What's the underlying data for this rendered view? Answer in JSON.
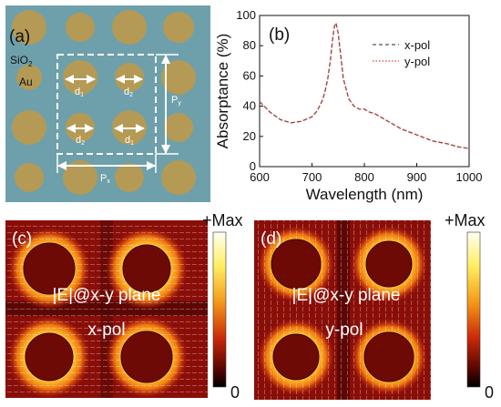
{
  "panel_a": {
    "label": "(a)",
    "substrate_label": "SiO",
    "substrate_sub": "2",
    "metal_label": "Au",
    "d1": "d",
    "d1_sub": "1",
    "d2": "d",
    "d2_sub": "2",
    "px": "P",
    "px_sub": "x",
    "py": "P",
    "py_sub": "y",
    "colors": {
      "background": "#6ea0ab",
      "disk": "#b49a54"
    }
  },
  "chart_data": {
    "type": "line",
    "label": "(b)",
    "xlabel": "Wavelength (nm)",
    "ylabel": "Absorptance (%)",
    "xlim": [
      600,
      1000
    ],
    "ylim": [
      0,
      100
    ],
    "xticks": [
      "600",
      "700",
      "800",
      "900",
      "1000"
    ],
    "yticks": [
      "0",
      "20",
      "40",
      "60",
      "80",
      "100"
    ],
    "series": [
      {
        "name": "x-pol",
        "style": "dashed",
        "color": "#555555",
        "x": [
          600,
          620,
          640,
          660,
          680,
          700,
          710,
          720,
          725,
          730,
          735,
          740,
          743,
          746,
          750,
          755,
          760,
          770,
          780,
          790,
          800,
          810,
          820,
          830,
          850,
          870,
          900,
          930,
          960,
          980,
          1000
        ],
        "y": [
          43,
          36,
          31,
          29,
          30,
          33,
          37,
          44,
          50,
          58,
          70,
          86,
          93,
          95,
          88,
          73,
          58,
          45,
          40,
          38,
          38,
          36,
          35,
          33,
          29,
          25,
          21,
          17,
          15,
          13,
          12
        ]
      },
      {
        "name": "y-pol",
        "style": "dotted",
        "color": "#e03a3a",
        "x": [
          600,
          620,
          640,
          660,
          680,
          700,
          710,
          720,
          725,
          730,
          735,
          740,
          743,
          746,
          750,
          755,
          760,
          770,
          780,
          790,
          800,
          810,
          820,
          830,
          850,
          870,
          900,
          930,
          960,
          980,
          1000
        ],
        "y": [
          43,
          36,
          31,
          29,
          30,
          33,
          37,
          44,
          50,
          58,
          70,
          86,
          93,
          95,
          88,
          73,
          58,
          45,
          40,
          38,
          38,
          36,
          35,
          33,
          29,
          25,
          21,
          17,
          15,
          13,
          12
        ]
      }
    ]
  },
  "panel_c": {
    "label": "(c)",
    "text1": "|E|@x-y plane",
    "text2": "x-pol",
    "scale_max": "+Max",
    "scale_min": "0"
  },
  "panel_d": {
    "label": "(d)",
    "text1": "|E|@x-y plane",
    "text2": "y-pol",
    "scale_max": "+Max",
    "scale_min": "0"
  }
}
